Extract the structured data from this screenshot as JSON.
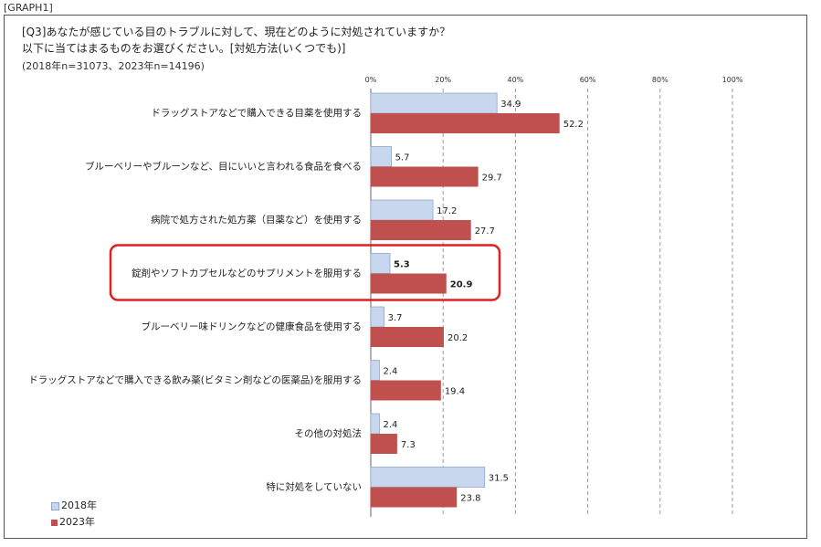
{
  "header": {
    "tag": "[GRAPH1]",
    "title_line1": "[Q3]あなたが感じている目のトラブルに対して、現在どのように対処されていますか？",
    "title_line2": "以下に当てはまるものをお選びください。[対処方法(いくつでも)]",
    "sample_note": "(2018年n=31073、2023年n=14196)"
  },
  "colors": {
    "series_2018": "#c9d7ee",
    "series_2018_border": "#8fa7cc",
    "series_2023": "#c0504d",
    "highlight": "#e02020",
    "grid": "#999999"
  },
  "chart_data": {
    "type": "bar",
    "orientation": "horizontal",
    "categories": [
      "ドラッグストアなどで購入できる目薬を使用する",
      "ブルーベリーやブルーンなど、目にいいと言われる食品を食べる",
      "病院で処方された処方薬（目薬など）を使用する",
      "錠剤やソフトカプセルなどのサプリメントを服用する",
      "ブルーベリー味ドリンクなどの健康食品を使用する",
      "ドラッグストアなどで購入できる飲み薬(ビタミン剤などの医薬品)を服用する",
      "その他の対処法",
      "特に対処をしていない"
    ],
    "series": [
      {
        "name": "2018年",
        "values": [
          34.9,
          5.7,
          17.2,
          5.3,
          3.7,
          2.4,
          2.4,
          31.5
        ]
      },
      {
        "name": "2023年",
        "values": [
          52.2,
          29.7,
          27.7,
          20.9,
          20.2,
          19.4,
          7.3,
          23.8
        ]
      }
    ],
    "xlim": [
      0,
      100
    ],
    "ticks": [
      0,
      20,
      40,
      60,
      80,
      100
    ],
    "tick_labels": [
      "0%",
      "20%",
      "40%",
      "60%",
      "80%",
      "100%"
    ],
    "grid": true,
    "legend_position": "bottom-left",
    "highlighted_category_index": 3
  }
}
